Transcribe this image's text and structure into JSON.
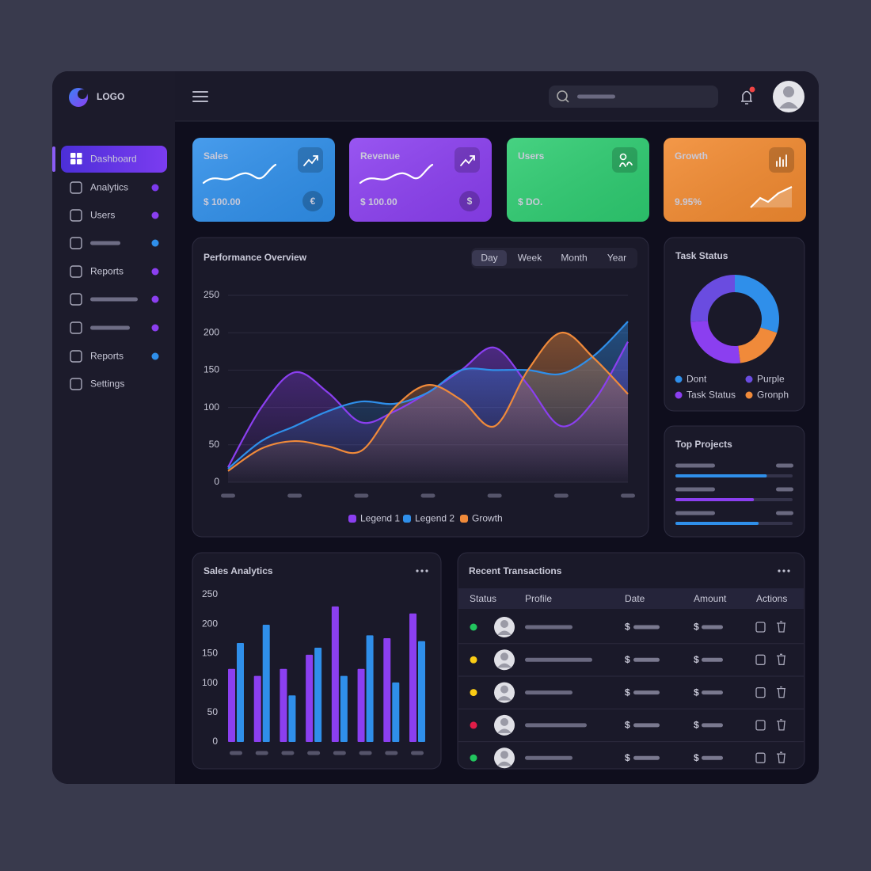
{
  "logo": "LOGO",
  "sidebar": [
    {
      "label": "Dashboard",
      "active": true
    },
    {
      "label": "Analytics",
      "dot": "#7c3aed"
    },
    {
      "label": "Users",
      "dot": "#8b3ff0"
    },
    {
      "label": null,
      "dot": "#2f8fea"
    },
    {
      "label": "Reports",
      "dot": "#8b3ff0"
    },
    {
      "label": null,
      "dot": "#8b3ff0"
    },
    {
      "label": null,
      "dot": "#8b3ff0"
    },
    {
      "label": "Reports",
      "dot": "#2f8fea"
    },
    {
      "label": "Settings"
    }
  ],
  "cards": [
    {
      "title": "Sales",
      "value": "$ 100.00",
      "badge": "€",
      "color": "#2f8fea"
    },
    {
      "title": "Revenue",
      "value": "$ 100.00",
      "badge": "$",
      "color": "#8b3ff0"
    },
    {
      "title": "Users",
      "value": "$ DO.",
      "color": "#2ecc71"
    },
    {
      "title": "Growth",
      "value": "9.95%",
      "color": "#f28a30"
    }
  ],
  "chart_data": [
    {
      "type": "line",
      "title": "Performance Overview",
      "tabs": [
        "Day",
        "Week",
        "Month",
        "Year"
      ],
      "active_tab": 0,
      "categories": [
        null,
        null,
        null,
        null,
        null,
        null,
        null,
        null,
        null,
        null,
        null,
        null,
        null
      ],
      "series": [
        {
          "name": "Legend 1",
          "color": "#8b3ff0",
          "values": [
            20,
            100,
            147,
            120,
            80,
            95,
            120,
            150,
            180,
            130,
            75,
            110,
            188
          ]
        },
        {
          "name": "Legend 2",
          "color": "#2f8fea",
          "values": [
            18,
            55,
            75,
            95,
            108,
            105,
            120,
            150,
            150,
            150,
            145,
            170,
            215
          ]
        },
        {
          "name": "Growth",
          "color": "#f08a3a",
          "values": [
            15,
            45,
            55,
            48,
            42,
            100,
            130,
            110,
            75,
            150,
            200,
            165,
            118
          ]
        }
      ],
      "ylim": [
        0,
        250
      ],
      "yticks": [
        0,
        50,
        100,
        150,
        200,
        250
      ],
      "grid": true,
      "area": true
    },
    {
      "type": "donut",
      "title": "Task Status",
      "categories": [
        "Dont",
        "Purple",
        "Task Status",
        "Gronph"
      ],
      "values": [
        30,
        26,
        26,
        18
      ],
      "colors": [
        "#2f8fea",
        "#6a4ce0",
        "#8b3ff0",
        "#f08a3a"
      ]
    },
    {
      "type": "bar",
      "title": "Sales Analytics",
      "categories": [
        null,
        null,
        null,
        null,
        null,
        null,
        null,
        null
      ],
      "series": [
        {
          "color": "#8b3ff0",
          "values": [
            124,
            112,
            124,
            148,
            230,
            124,
            176,
            218
          ]
        },
        {
          "color": "#2f8fea",
          "values": [
            168,
            199,
            79,
            160,
            112,
            181,
            101,
            171
          ]
        }
      ],
      "ylim": [
        0,
        250
      ],
      "yticks": [
        0,
        50,
        100,
        150,
        200,
        250
      ]
    }
  ],
  "top_projects": {
    "title": "Top Projects",
    "xlim": [
      0,
      100
    ],
    "progress": [
      {
        "value": 78,
        "color": "#2f8fea"
      },
      {
        "value": 67,
        "color": "#8b3ff0"
      },
      {
        "value": 71,
        "color": "#2f8fea"
      }
    ]
  },
  "transactions": {
    "title": "Recent Transactions",
    "headers": [
      "Status",
      "Profile",
      "Date",
      "Amount",
      "Actions"
    ],
    "rows": [
      {
        "status": "#22c55e",
        "date": "$",
        "amount": "$"
      },
      {
        "status": "#facc15",
        "date": "$",
        "amount": "$"
      },
      {
        "status": "#facc15",
        "date": "$",
        "amount": "$"
      },
      {
        "status": "#e11d48",
        "date": "$",
        "amount": "$"
      },
      {
        "status": "#22c55e",
        "date": "$",
        "amount": "$"
      }
    ]
  }
}
